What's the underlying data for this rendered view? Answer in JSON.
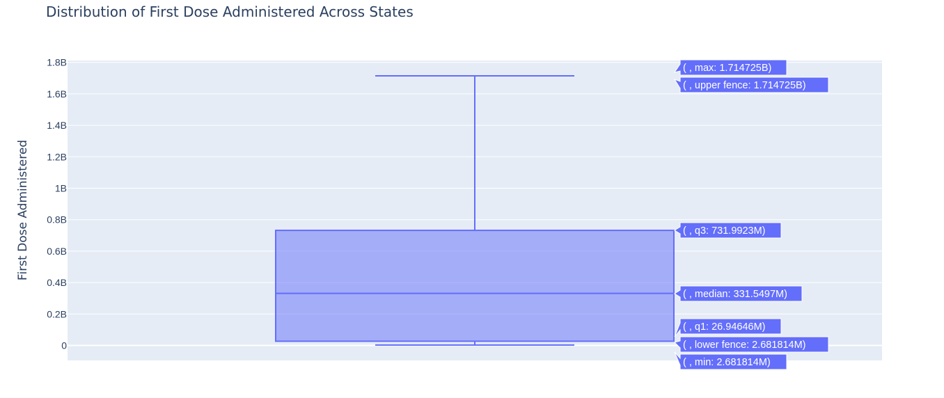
{
  "chart_data": {
    "type": "box",
    "title": "Distribution of First Dose Administered Across States",
    "ylabel": "First Dose Administered",
    "xlabel": "",
    "ylim": [
      -0.09,
      1.8
    ],
    "yunit": "B",
    "ticks": [
      {
        "value": 0,
        "label": "0"
      },
      {
        "value": 0.2,
        "label": "0.2B"
      },
      {
        "value": 0.4,
        "label": "0.4B"
      },
      {
        "value": 0.6,
        "label": "0.6B"
      },
      {
        "value": 0.8,
        "label": "0.8B"
      },
      {
        "value": 1.0,
        "label": "1B"
      },
      {
        "value": 1.2,
        "label": "1.2B"
      },
      {
        "value": 1.4,
        "label": "1.4B"
      },
      {
        "value": 1.6,
        "label": "1.6B"
      },
      {
        "value": 1.8,
        "label": "1.8B"
      }
    ],
    "grid": true,
    "stats": {
      "min": 0.002681814,
      "lower_fence": 0.002681814,
      "q1": 0.02694646,
      "median": 0.3315497,
      "q3": 0.7319923,
      "upper_fence": 1.714725,
      "max": 1.714725
    },
    "hover_labels": [
      {
        "key": "max",
        "text": "( , max: 1.714725B)"
      },
      {
        "key": "upper_fence",
        "text": "( , upper fence: 1.714725B)"
      },
      {
        "key": "q3",
        "text": "( , q3: 731.9923M)"
      },
      {
        "key": "median",
        "text": "( , median: 331.5497M)"
      },
      {
        "key": "q1",
        "text": "( , q1: 26.94646M)"
      },
      {
        "key": "lower_fence",
        "text": "( , lower fence: 2.681814M)"
      },
      {
        "key": "min",
        "text": "( , min: 2.681814M)"
      }
    ],
    "colors": {
      "plot_bg": "#e5ecf6",
      "grid": "#ffffff",
      "box_line": "#636efa",
      "box_fill": "rgba(99,110,250,0.5)",
      "hover_bg": "#636efa",
      "text": "#2a3f5f"
    }
  }
}
